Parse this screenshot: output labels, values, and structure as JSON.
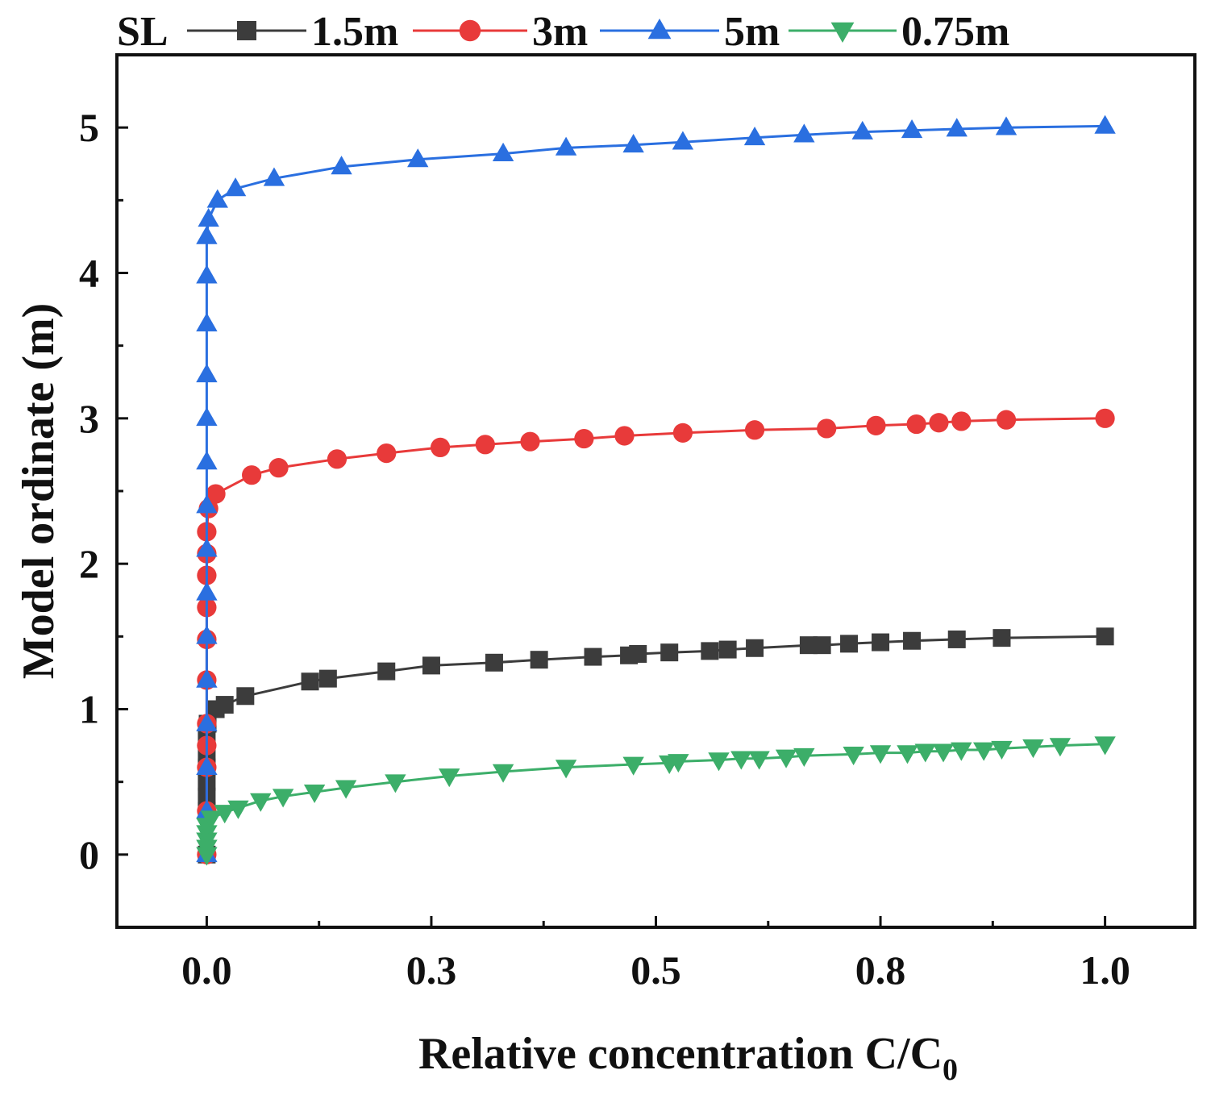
{
  "chart_data": {
    "type": "line",
    "title": "",
    "xlabel": "Relative concentration C/C",
    "xlabel_subscript": "0",
    "ylabel": "Model ordinate (m)",
    "xlim": [
      -0.1,
      1.1
    ],
    "ylim": [
      -0.5,
      5.5
    ],
    "x_ticks": [
      0.0,
      0.25,
      0.5,
      0.75,
      1.0
    ],
    "x_tick_labels": [
      "0.0",
      "0.3",
      "0.5",
      "0.8",
      "1.0"
    ],
    "y_ticks": [
      0,
      1,
      2,
      3,
      4,
      5
    ],
    "y_tick_labels": [
      "0",
      "1",
      "2",
      "3",
      "4",
      "5"
    ],
    "grid": false,
    "legend": {
      "title": "SL",
      "placement": "top-outside"
    },
    "series": [
      {
        "name": "1.5m",
        "color": "#3c3c3c",
        "marker": "square",
        "points": [
          [
            0,
            0
          ],
          [
            0,
            0.3
          ],
          [
            0,
            0.4
          ],
          [
            0,
            0.5
          ],
          [
            0,
            0.6
          ],
          [
            0,
            0.7
          ],
          [
            0,
            0.8
          ],
          [
            0.001,
            0.9
          ],
          [
            0.01,
            1.0
          ],
          [
            0.02,
            1.03
          ],
          [
            0.043,
            1.09
          ],
          [
            0.115,
            1.19
          ],
          [
            0.135,
            1.21
          ],
          [
            0.2,
            1.26
          ],
          [
            0.25,
            1.3
          ],
          [
            0.32,
            1.32
          ],
          [
            0.37,
            1.34
          ],
          [
            0.43,
            1.36
          ],
          [
            0.47,
            1.37
          ],
          [
            0.48,
            1.38
          ],
          [
            0.515,
            1.39
          ],
          [
            0.56,
            1.4
          ],
          [
            0.58,
            1.41
          ],
          [
            0.61,
            1.42
          ],
          [
            0.67,
            1.44
          ],
          [
            0.685,
            1.44
          ],
          [
            0.715,
            1.45
          ],
          [
            0.75,
            1.46
          ],
          [
            0.785,
            1.47
          ],
          [
            0.835,
            1.48
          ],
          [
            0.885,
            1.49
          ],
          [
            1.0,
            1.5
          ]
        ]
      },
      {
        "name": "3m",
        "color": "#e83a3a",
        "marker": "circle",
        "points": [
          [
            0,
            0
          ],
          [
            0,
            0.3
          ],
          [
            0,
            0.6
          ],
          [
            0,
            0.75
          ],
          [
            0,
            0.9
          ],
          [
            0,
            1.2
          ],
          [
            0,
            1.48
          ],
          [
            0,
            1.7
          ],
          [
            0,
            1.92
          ],
          [
            0,
            2.07
          ],
          [
            0,
            2.22
          ],
          [
            0.002,
            2.38
          ],
          [
            0.01,
            2.48
          ],
          [
            0.05,
            2.61
          ],
          [
            0.08,
            2.66
          ],
          [
            0.145,
            2.72
          ],
          [
            0.2,
            2.76
          ],
          [
            0.26,
            2.8
          ],
          [
            0.31,
            2.82
          ],
          [
            0.36,
            2.84
          ],
          [
            0.42,
            2.86
          ],
          [
            0.465,
            2.88
          ],
          [
            0.53,
            2.9
          ],
          [
            0.61,
            2.92
          ],
          [
            0.69,
            2.93
          ],
          [
            0.745,
            2.95
          ],
          [
            0.79,
            2.96
          ],
          [
            0.815,
            2.97
          ],
          [
            0.84,
            2.98
          ],
          [
            0.89,
            2.99
          ],
          [
            1.0,
            3.0
          ]
        ]
      },
      {
        "name": "5m",
        "color": "#2a6fe0",
        "marker": "triangle-up",
        "points": [
          [
            0,
            0
          ],
          [
            0,
            0.3
          ],
          [
            0,
            0.6
          ],
          [
            0,
            0.9
          ],
          [
            0,
            1.2
          ],
          [
            0,
            1.5
          ],
          [
            0,
            1.8
          ],
          [
            0,
            2.1
          ],
          [
            0,
            2.4
          ],
          [
            0,
            2.7
          ],
          [
            0,
            3.0
          ],
          [
            0,
            3.3
          ],
          [
            0,
            3.65
          ],
          [
            0,
            3.98
          ],
          [
            0,
            4.25
          ],
          [
            0.002,
            4.37
          ],
          [
            0.012,
            4.5
          ],
          [
            0.032,
            4.58
          ],
          [
            0.075,
            4.65
          ],
          [
            0.15,
            4.73
          ],
          [
            0.235,
            4.78
          ],
          [
            0.33,
            4.82
          ],
          [
            0.4,
            4.86
          ],
          [
            0.475,
            4.88
          ],
          [
            0.53,
            4.9
          ],
          [
            0.61,
            4.93
          ],
          [
            0.665,
            4.95
          ],
          [
            0.73,
            4.97
          ],
          [
            0.785,
            4.98
          ],
          [
            0.835,
            4.99
          ],
          [
            0.89,
            5.0
          ],
          [
            1.0,
            5.01
          ]
        ]
      },
      {
        "name": "0.75m",
        "color": "#3cae69",
        "marker": "triangle-down",
        "points": [
          [
            0,
            0
          ],
          [
            0,
            0.05
          ],
          [
            0,
            0.1
          ],
          [
            0,
            0.15
          ],
          [
            0,
            0.2
          ],
          [
            0.005,
            0.25
          ],
          [
            0.02,
            0.29
          ],
          [
            0.035,
            0.32
          ],
          [
            0.06,
            0.37
          ],
          [
            0.085,
            0.4
          ],
          [
            0.12,
            0.43
          ],
          [
            0.155,
            0.46
          ],
          [
            0.21,
            0.5
          ],
          [
            0.27,
            0.54
          ],
          [
            0.33,
            0.57
          ],
          [
            0.4,
            0.6
          ],
          [
            0.475,
            0.62
          ],
          [
            0.515,
            0.63
          ],
          [
            0.525,
            0.64
          ],
          [
            0.57,
            0.65
          ],
          [
            0.595,
            0.66
          ],
          [
            0.615,
            0.66
          ],
          [
            0.645,
            0.67
          ],
          [
            0.665,
            0.68
          ],
          [
            0.72,
            0.69
          ],
          [
            0.75,
            0.7
          ],
          [
            0.78,
            0.7
          ],
          [
            0.8,
            0.71
          ],
          [
            0.82,
            0.71
          ],
          [
            0.84,
            0.72
          ],
          [
            0.865,
            0.72
          ],
          [
            0.885,
            0.73
          ],
          [
            0.92,
            0.74
          ],
          [
            0.95,
            0.75
          ],
          [
            1.0,
            0.76
          ]
        ]
      }
    ]
  }
}
